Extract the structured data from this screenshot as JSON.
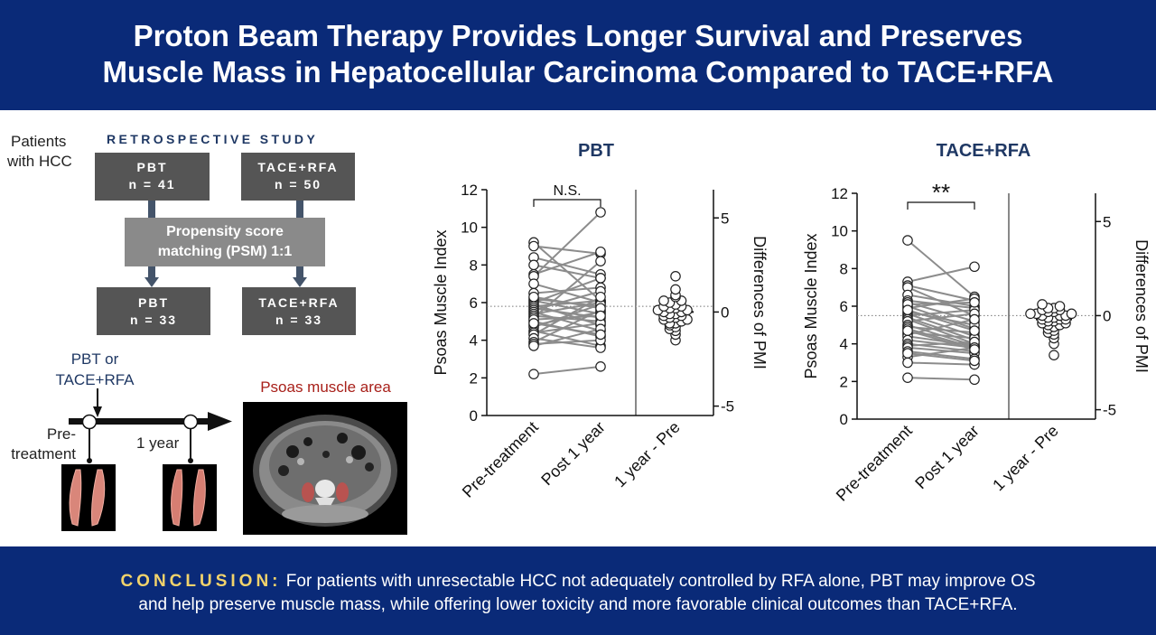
{
  "header": {
    "title_line1": "Proton Beam Therapy Provides Longer Survival and Preserves",
    "title_line2": "Muscle Mass in Hepatocellular Carcinoma Compared to TACE+RFA"
  },
  "design": {
    "patients_label_1": "Patients",
    "patients_label_2": "with HCC",
    "study_label": "RETROSPECTIVE STUDY",
    "box_pbt_title": "PBT",
    "box_pbt_n": "n = 41",
    "box_tace_title": "TACE+RFA",
    "box_tace_n": "n = 50",
    "psm_line1": "Propensity score",
    "psm_line2": "matching (PSM) 1:1",
    "box_pbt2_title": "PBT",
    "box_pbt2_n": "n = 33",
    "box_tace2_title": "TACE+RFA",
    "box_tace2_n": "n = 33"
  },
  "timeline": {
    "treatment_line1": "PBT or",
    "treatment_line2": "TACE+RFA",
    "pre_line1": "Pre-",
    "pre_line2": "treatment",
    "one_year": "1 year",
    "psoas_area_label": "Psoas muscle area"
  },
  "colors": {
    "navy": "#0a2a78",
    "conclusion_accent": "#f2d36b",
    "psoas_label": "#a8201a",
    "box_dark": "#555555",
    "box_mid": "#8a8a8a",
    "line_gray": "#8c8c8c"
  },
  "chart_data": [
    {
      "type": "scatter",
      "title": "PBT",
      "categories": [
        "Pre-treatment",
        "Post 1 year",
        "1 year - Pre"
      ],
      "ylabel": "Psoas Muscle Index",
      "ylim": [
        0,
        12
      ],
      "yticks": [
        "0",
        "2",
        "4",
        "6",
        "8",
        "10",
        "12"
      ],
      "y2label": "Differences of PMI",
      "y2lim": [
        -5.5,
        6.5
      ],
      "y2ticks": [
        "-5",
        "0",
        "5"
      ],
      "significance": "N.S.",
      "pairs": [
        [
          9.2,
          6.1
        ],
        [
          9.0,
          8.6
        ],
        [
          8.4,
          7.5
        ],
        [
          8.0,
          7.3
        ],
        [
          7.5,
          8.7
        ],
        [
          7.4,
          10.8
        ],
        [
          7.0,
          6.0
        ],
        [
          6.5,
          6.8
        ],
        [
          6.2,
          5.8
        ],
        [
          6.1,
          5.4
        ],
        [
          6.0,
          7.3
        ],
        [
          5.9,
          4.8
        ],
        [
          5.8,
          6.1
        ],
        [
          5.7,
          5.2
        ],
        [
          5.6,
          6.6
        ],
        [
          5.5,
          4.5
        ],
        [
          5.4,
          6.0
        ],
        [
          5.3,
          5.0
        ],
        [
          5.2,
          8.2
        ],
        [
          5.0,
          4.2
        ],
        [
          4.8,
          5.5
        ],
        [
          4.7,
          5.9
        ],
        [
          4.5,
          3.7
        ],
        [
          4.4,
          4.9
        ],
        [
          4.3,
          6.3
        ],
        [
          4.1,
          3.6
        ],
        [
          3.9,
          5.6
        ],
        [
          3.8,
          4.0
        ],
        [
          3.7,
          4.6
        ],
        [
          2.2,
          2.6
        ],
        [
          6.3,
          5.7
        ],
        [
          5.1,
          5.3
        ],
        [
          4.9,
          4.3
        ]
      ],
      "differences": [
        1.9,
        1.2,
        0.9,
        0.6,
        0.5,
        0.4,
        0.3,
        0.2,
        0.1,
        0.0,
        0.0,
        -0.1,
        -0.2,
        -0.2,
        -0.3,
        -0.4,
        -0.5,
        -0.6,
        -0.7,
        -0.8,
        -1.0,
        -1.2,
        -1.5,
        0.8,
        0.3,
        -0.3,
        0.6,
        0.1,
        -0.9,
        -0.4,
        0.2,
        -0.1,
        -0.6
      ],
      "mean_difference": 0.0,
      "reference_line": 5.8
    },
    {
      "type": "scatter",
      "title": "TACE+RFA",
      "categories": [
        "Pre-treatment",
        "Post 1 year",
        "1 year - Pre"
      ],
      "ylabel": "Psoas Muscle Index",
      "ylim": [
        0,
        12
      ],
      "yticks": [
        "0",
        "2",
        "4",
        "6",
        "8",
        "10",
        "12"
      ],
      "y2label": "Differences of PMI",
      "y2lim": [
        -5.5,
        6.5
      ],
      "y2ticks": [
        "-5",
        "0",
        "5"
      ],
      "significance": "**",
      "pairs": [
        [
          9.5,
          6.5
        ],
        [
          7.3,
          8.1
        ],
        [
          7.1,
          6.3
        ],
        [
          7.0,
          5.5
        ],
        [
          6.6,
          6.0
        ],
        [
          6.3,
          5.9
        ],
        [
          6.2,
          5.2
        ],
        [
          6.0,
          4.8
        ],
        [
          5.9,
          6.4
        ],
        [
          5.7,
          5.0
        ],
        [
          5.6,
          4.4
        ],
        [
          5.5,
          5.8
        ],
        [
          5.4,
          4.2
        ],
        [
          5.3,
          4.0
        ],
        [
          5.2,
          5.6
        ],
        [
          5.0,
          3.9
        ],
        [
          4.9,
          4.6
        ],
        [
          4.8,
          3.8
        ],
        [
          4.6,
          4.3
        ],
        [
          4.5,
          5.3
        ],
        [
          4.4,
          3.9
        ],
        [
          4.2,
          3.8
        ],
        [
          4.0,
          3.6
        ],
        [
          3.9,
          4.1
        ],
        [
          3.8,
          3.5
        ],
        [
          3.6,
          3.2
        ],
        [
          3.3,
          3.8
        ],
        [
          3.0,
          2.9
        ],
        [
          2.2,
          2.1
        ],
        [
          6.1,
          6.2
        ],
        [
          5.8,
          4.7
        ],
        [
          4.7,
          3.7
        ],
        [
          3.5,
          3.1
        ]
      ],
      "differences": [
        0.6,
        0.5,
        0.4,
        0.4,
        0.3,
        0.3,
        0.2,
        0.2,
        0.1,
        0.1,
        0.0,
        0.0,
        0.0,
        -0.1,
        -0.1,
        -0.2,
        -0.2,
        -0.3,
        -0.3,
        -0.4,
        -0.4,
        -0.5,
        -0.6,
        -0.7,
        -0.8,
        -0.9,
        -1.0,
        -1.2,
        -1.5,
        -2.1,
        -0.2,
        0.1,
        -0.5
      ],
      "mean_difference": -0.2,
      "reference_line": 5.5
    }
  ],
  "footer": {
    "conclusion_label": "CONCLUSION:",
    "line1": "For patients with unresectable HCC not adequately controlled by RFA alone, PBT may improve OS",
    "line2": "and help preserve muscle mass, while offering lower toxicity and more favorable clinical outcomes than TACE+RFA."
  }
}
